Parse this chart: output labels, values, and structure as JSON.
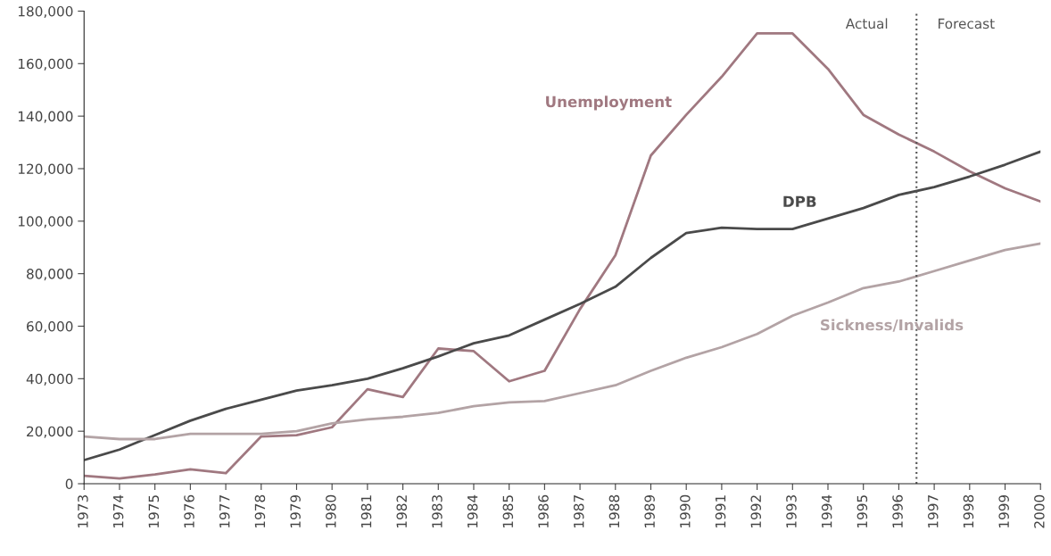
{
  "chart_data": {
    "type": "line",
    "x": [
      1973,
      1974,
      1975,
      1976,
      1977,
      1978,
      1979,
      1980,
      1981,
      1982,
      1983,
      1984,
      1985,
      1986,
      1987,
      1988,
      1989,
      1990,
      1991,
      1992,
      1993,
      1994,
      1995,
      1996,
      1997,
      1998,
      1999,
      2000
    ],
    "series": [
      {
        "name": "Unemployment",
        "color": "#a07880",
        "values": [
          3000,
          2000,
          3500,
          5500,
          4000,
          18000,
          18500,
          21500,
          36000,
          33000,
          51500,
          50500,
          39000,
          43000,
          66500,
          87000,
          125000,
          140500,
          155000,
          171500,
          171500,
          158000,
          140500,
          133000,
          126500,
          119000,
          112500,
          107500
        ]
      },
      {
        "name": "DPB",
        "color": "#4a4a4a",
        "values": [
          9000,
          13000,
          18500,
          24000,
          28500,
          32000,
          35500,
          37500,
          40000,
          44000,
          48500,
          53500,
          56500,
          62500,
          68500,
          75000,
          86000,
          95500,
          97500,
          97000,
          97000,
          101000,
          105000,
          110000,
          113000,
          117000,
          121500,
          126500
        ]
      },
      {
        "name": "Sickness/Invalids",
        "color": "#b3a3a5",
        "values": [
          18000,
          17000,
          17000,
          19000,
          19000,
          19000,
          20000,
          23000,
          24500,
          25500,
          27000,
          29500,
          31000,
          31500,
          34500,
          37500,
          43000,
          48000,
          52000,
          57000,
          64000,
          69000,
          74500,
          77000,
          81000,
          85000,
          89000,
          91500
        ]
      }
    ],
    "xlim": [
      1973,
      2000
    ],
    "xticks": [
      1973,
      1974,
      1975,
      1976,
      1977,
      1978,
      1979,
      1980,
      1981,
      1982,
      1983,
      1984,
      1985,
      1986,
      1987,
      1988,
      1989,
      1990,
      1991,
      1992,
      1993,
      1994,
      1995,
      1996,
      1997,
      1998,
      1999,
      2000
    ],
    "ylim": [
      0,
      180000
    ],
    "yticks": [
      {
        "value": 0,
        "label": "0"
      },
      {
        "value": 20000,
        "label": "20,000"
      },
      {
        "value": 40000,
        "label": "40,000"
      },
      {
        "value": 60000,
        "label": "60,000"
      },
      {
        "value": 80000,
        "label": "80,000"
      },
      {
        "value": 100000,
        "label": "100,000"
      },
      {
        "value": 120000,
        "label": "120,000"
      },
      {
        "value": 140000,
        "label": "140,000"
      },
      {
        "value": 160000,
        "label": "160,000"
      },
      {
        "value": 180000,
        "label": "180,000"
      }
    ],
    "ref_lines": [
      {
        "axis": "x",
        "value": 1996.5,
        "color": "#555555",
        "line_style": "dotted"
      }
    ],
    "annotations": [
      "Actual",
      "Forecast"
    ],
    "grid": false,
    "legend": false,
    "marker": "none",
    "line_style": "solid"
  }
}
